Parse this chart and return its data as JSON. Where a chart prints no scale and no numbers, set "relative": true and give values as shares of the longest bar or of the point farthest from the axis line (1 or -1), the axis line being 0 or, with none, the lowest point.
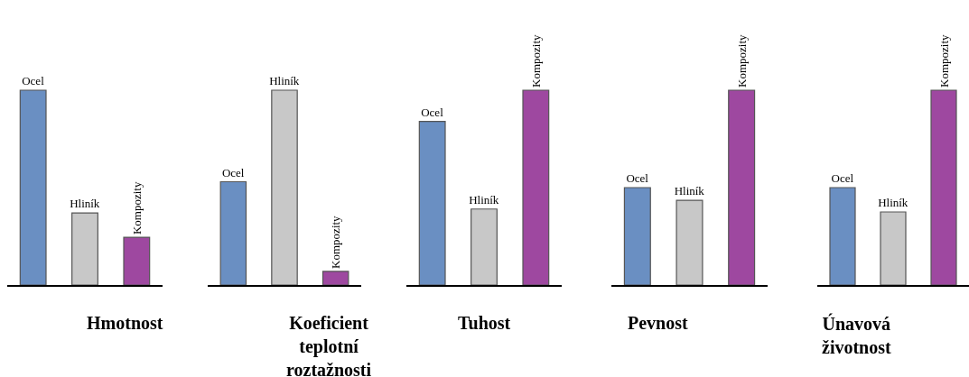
{
  "chart_data": [
    {
      "type": "bar",
      "relative": true,
      "xlabel": "Hmotnost",
      "categories": [
        "Ocel",
        "Hliník",
        "Kompozity"
      ],
      "values": [
        1,
        0.37,
        0.245
      ],
      "colors": [
        "#6a8fc2",
        "#c8c8c8",
        "#9e48a0"
      ]
    },
    {
      "type": "bar",
      "relative": true,
      "xlabel": "Koeficient\nteplotní\nroztažnosti",
      "categories": [
        "Ocel",
        "Hliník",
        "Kompozity"
      ],
      "values": [
        0.53,
        1,
        0.07
      ],
      "colors": [
        "#6a8fc2",
        "#c8c8c8",
        "#9e48a0"
      ]
    },
    {
      "type": "bar",
      "relative": true,
      "xlabel": "Tuhost",
      "categories": [
        "Ocel",
        "Hliník",
        "Kompozity"
      ],
      "values": [
        0.84,
        0.39,
        1
      ],
      "colors": [
        "#6a8fc2",
        "#c8c8c8",
        "#9e48a0"
      ]
    },
    {
      "type": "bar",
      "relative": true,
      "xlabel": "Pevnost",
      "categories": [
        "Ocel",
        "Hliník",
        "Kompozity"
      ],
      "values": [
        0.5,
        0.435,
        1
      ],
      "colors": [
        "#6a8fc2",
        "#c8c8c8",
        "#9e48a0"
      ]
    },
    {
      "type": "bar",
      "relative": true,
      "xlabel": "Únavová\nživotnost",
      "categories": [
        "Ocel",
        "Hliník",
        "Kompozity"
      ],
      "values": [
        0.5,
        0.375,
        1
      ],
      "colors": [
        "#6a8fc2",
        "#c8c8c8",
        "#9e48a0"
      ]
    }
  ]
}
